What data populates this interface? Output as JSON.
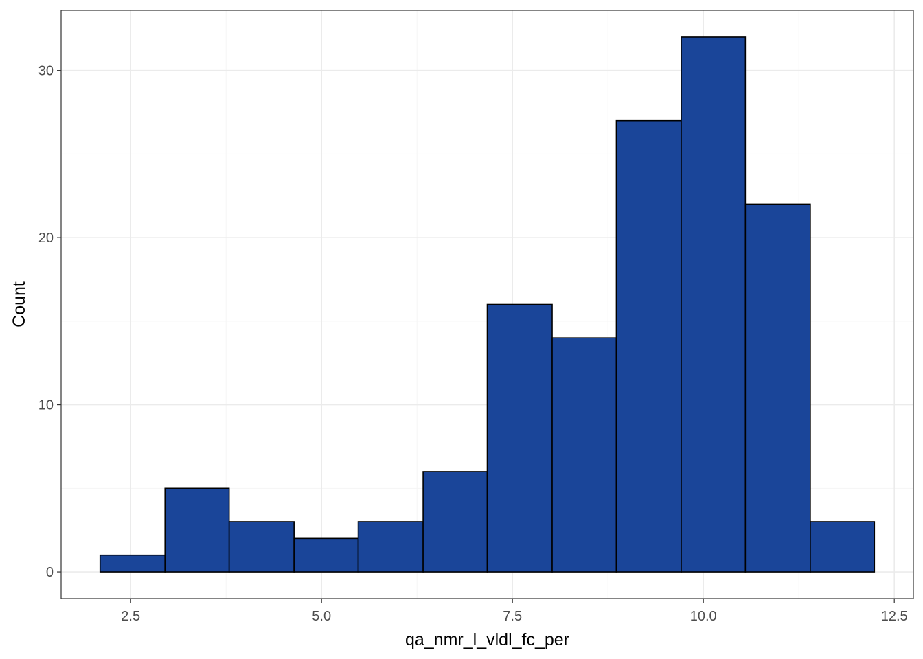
{
  "chart_data": {
    "type": "bar",
    "subtype": "histogram",
    "title": "",
    "xlabel": "qa_nmr_l_vldl_fc_per",
    "ylabel": "Count",
    "bins": [
      {
        "x0": 2.1,
        "x1": 2.95,
        "count": 1
      },
      {
        "x0": 2.95,
        "x1": 3.79,
        "count": 5
      },
      {
        "x0": 3.79,
        "x1": 4.64,
        "count": 3
      },
      {
        "x0": 4.64,
        "x1": 5.48,
        "count": 2
      },
      {
        "x0": 5.48,
        "x1": 6.33,
        "count": 3
      },
      {
        "x0": 6.33,
        "x1": 7.17,
        "count": 6
      },
      {
        "x0": 7.17,
        "x1": 8.02,
        "count": 16
      },
      {
        "x0": 8.02,
        "x1": 8.86,
        "count": 14
      },
      {
        "x0": 8.86,
        "x1": 9.71,
        "count": 27
      },
      {
        "x0": 9.71,
        "x1": 10.55,
        "count": 32
      },
      {
        "x0": 10.55,
        "x1": 11.4,
        "count": 22
      },
      {
        "x0": 11.4,
        "x1": 12.24,
        "count": 3
      }
    ],
    "xlim": [
      1.59,
      12.75
    ],
    "ylim": [
      -1.6,
      33.6
    ],
    "x_ticks": [
      2.5,
      5.0,
      7.5,
      10.0,
      12.5
    ],
    "x_tick_labels": [
      "2.5",
      "5.0",
      "7.5",
      "10.0",
      "12.5"
    ],
    "y_ticks": [
      0,
      10,
      20,
      30
    ],
    "y_tick_labels": [
      "0",
      "10",
      "20",
      "30"
    ],
    "x_minor_ticks": [
      3.75,
      6.25,
      8.75,
      11.25
    ],
    "y_minor_ticks": [
      5,
      15,
      25
    ],
    "grid": true,
    "colors": {
      "bar_fill": "#1a4599",
      "bar_stroke": "#000000",
      "grid_major": "#ebebeb",
      "grid_minor": "#f5f5f5",
      "panel_border": "#333333",
      "tick_text": "#4d4d4d"
    }
  }
}
